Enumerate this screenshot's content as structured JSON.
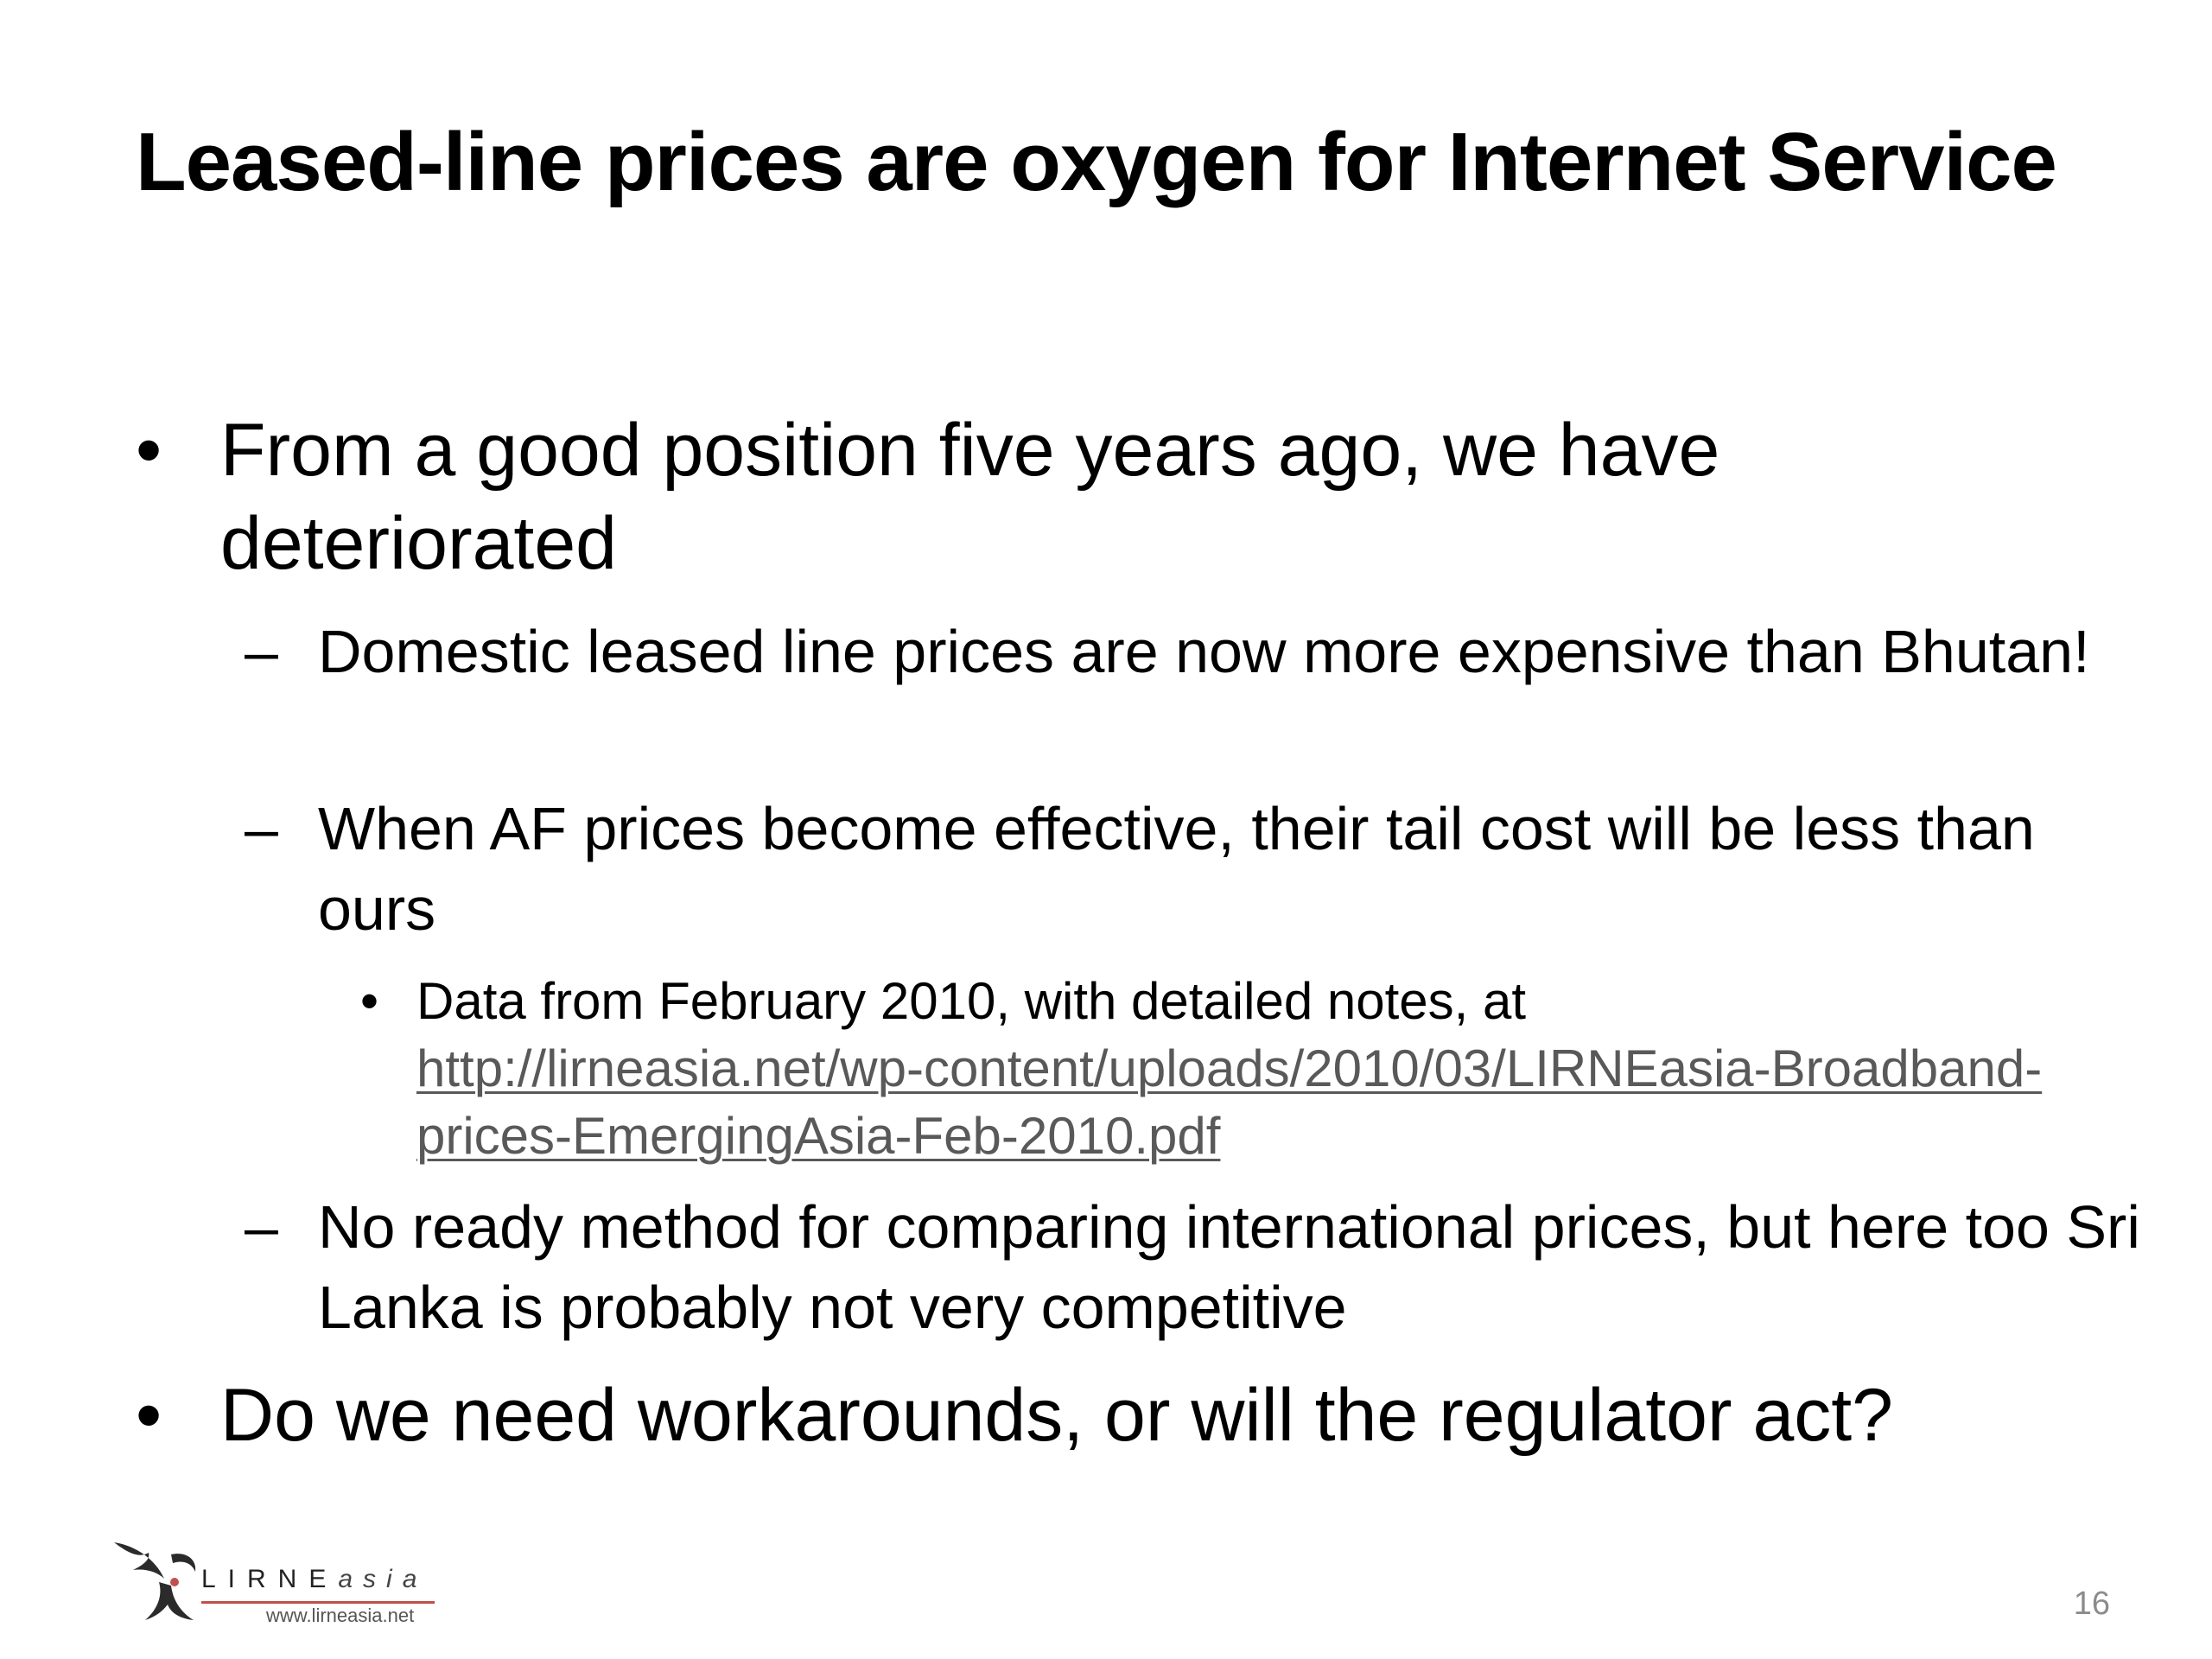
{
  "slide": {
    "title": "Leased-line prices are oxygen for Internet Service",
    "bullets": [
      {
        "marker": "•",
        "text": "From a good position five years ago, we have deteriorated"
      },
      {
        "marker": "–",
        "text": "Domestic leased line prices are now more expensive than Bhutan!"
      },
      {
        "marker": "–",
        "text": "When AF prices become effective, their tail cost will be less than ours"
      },
      {
        "marker": "•",
        "text": "Data from February 2010, with detailed notes, at",
        "link": "http://lirneasia.net/wp-content/uploads/2010/03/LIRNEasia-Broadband-prices-EmergingAsia-Feb-2010.pdf"
      },
      {
        "marker": "–",
        "text": "No ready method for comparing international prices, but here too Sri Lanka is probably not very competitive"
      },
      {
        "marker": "•",
        "text": "Do we need workarounds, or will the regulator act?"
      }
    ],
    "slide_number": "16"
  },
  "logo": {
    "name_main": "LIRNE",
    "name_suffix": "asia",
    "url": "www.lirneasia.net",
    "icon": "bird-logo-icon",
    "accent_color": "#c0504d"
  },
  "colors": {
    "text": "#000000",
    "link": "#595959",
    "slide_number": "#8c8c8c"
  }
}
